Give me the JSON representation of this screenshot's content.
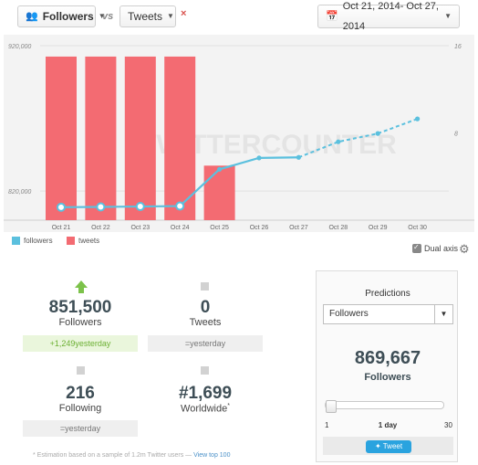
{
  "toolbar": {
    "metric1_label": "Followers",
    "vs_label": "vs",
    "metric2_label": "Tweets",
    "remove_label": "×",
    "date_range": "Oct 21, 2014- Oct 27, 2014"
  },
  "icons": {
    "metric1": "users-icon",
    "calendar": "calendar-icon",
    "settings": "gear-icon",
    "tweet": "twitter-bird-icon"
  },
  "colors": {
    "followers": "#5bc0de",
    "tweets": "#f36b72",
    "positive": "#6cb033",
    "twitter": "#2aa3df"
  },
  "chart_data": {
    "type": "bar",
    "categories": [
      "Oct 21",
      "Oct 22",
      "Oct 23",
      "Oct 24",
      "Oct 25",
      "Oct 26",
      "Oct 27",
      "Oct 28",
      "Oct 29",
      "Oct 30"
    ],
    "series": [
      {
        "name": "followers",
        "type": "line",
        "axis": "left",
        "values": [
          808900,
          809100,
          809400,
          809700,
          835000,
          842800,
          843200,
          853900,
          859600,
          869667
        ],
        "projected_from_index": 6
      },
      {
        "name": "tweets",
        "type": "bar",
        "axis": "right",
        "values": [
          15,
          15,
          15,
          15,
          5,
          0,
          0,
          0,
          0,
          0
        ]
      }
    ],
    "left_ticks": [
      "920,000",
      "820,000"
    ],
    "right_ticks": [
      "16",
      "8"
    ],
    "left_ylim": [
      800000,
      920000
    ],
    "right_ylim": [
      0,
      16
    ],
    "legend": [
      "followers",
      "tweets"
    ],
    "legend_position": "bottom-left",
    "watermark": "TWITTERCOUNTER"
  },
  "options": {
    "dual_axis_label": "Dual axis",
    "dual_axis_checked": true
  },
  "stats": {
    "followers": {
      "value": "851,500",
      "label": "Followers",
      "change": "+1,249",
      "change_suffix": "yesterday"
    },
    "tweets": {
      "value": "0",
      "label": "Tweets",
      "change": "=yesterday"
    },
    "following": {
      "value": "216",
      "label": "Following",
      "change": "=yesterday"
    },
    "rank": {
      "value": "#1,699",
      "label": "Worldwide",
      "sup": "*"
    }
  },
  "footnote": {
    "text": "* Estimation based on a sample of 1.2m Twitter users — ",
    "link": "View top 100"
  },
  "predictions": {
    "title": "Predictions",
    "selected": "Followers",
    "value": "869,667",
    "label": "Followers",
    "slider_min": "1",
    "slider_current": "1 day",
    "slider_max": "30",
    "slider_value": 1,
    "tweet_label": "Tweet"
  }
}
